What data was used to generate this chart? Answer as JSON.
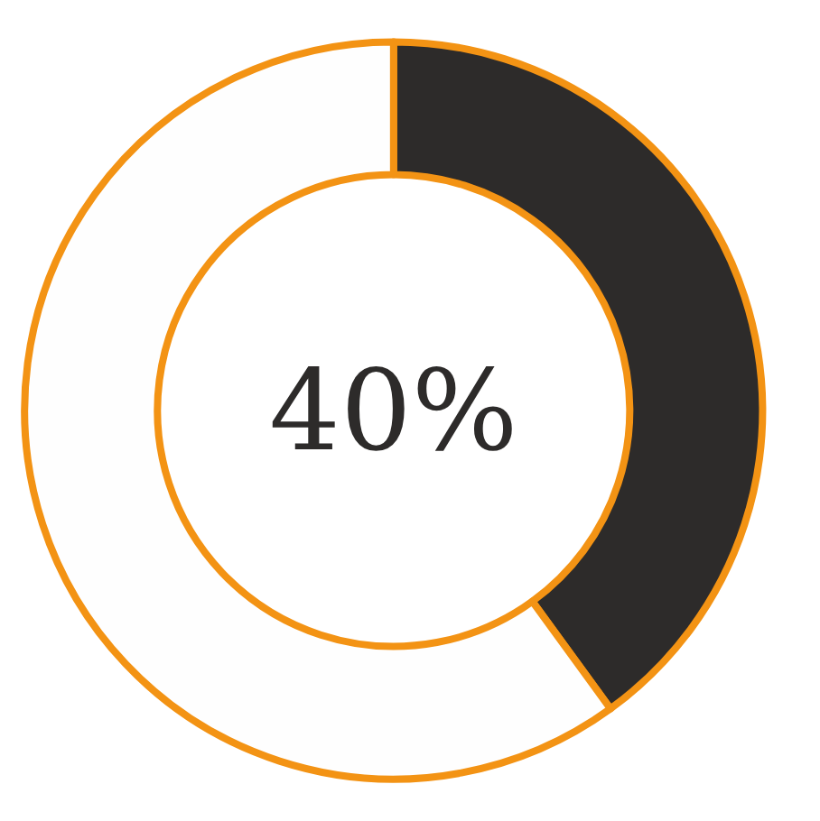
{
  "chart_data": {
    "type": "donut",
    "categories": [
      null,
      null
    ],
    "values": [
      40,
      60
    ],
    "colors": [
      "#2d2b2a",
      "#fefefe"
    ],
    "annotations": [
      "40%"
    ]
  }
}
